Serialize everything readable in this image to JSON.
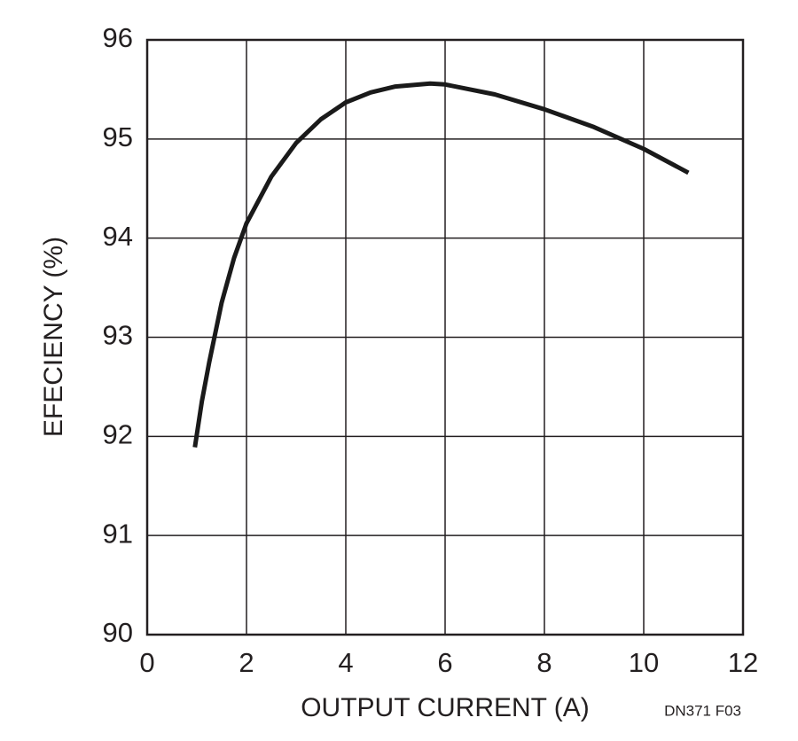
{
  "chart_data": {
    "type": "line",
    "x_label": "OUTPUT CURRENT (A)",
    "y_label": "EFECIENCY (%)",
    "note": "DN371 F03",
    "x": [
      0.96,
      1.1,
      1.25,
      1.5,
      1.75,
      2.0,
      2.5,
      3.0,
      3.5,
      4.0,
      4.5,
      5.0,
      5.7,
      6.0,
      7.0,
      8.0,
      9.0,
      10.0,
      10.9
    ],
    "series": [
      {
        "name": "Efficiency",
        "color": "#1a1a1a",
        "values": [
          91.89,
          92.35,
          92.75,
          93.35,
          93.8,
          94.15,
          94.62,
          94.96,
          95.2,
          95.37,
          95.47,
          95.53,
          95.56,
          95.55,
          95.45,
          95.3,
          95.12,
          94.9,
          94.66
        ]
      }
    ],
    "xlim": [
      0,
      12
    ],
    "xticks": [
      0,
      2,
      4,
      6,
      8,
      10,
      12
    ],
    "ylim": [
      90,
      96
    ],
    "yticks": [
      90,
      91,
      92,
      93,
      94,
      95,
      96
    ],
    "grid": true
  }
}
